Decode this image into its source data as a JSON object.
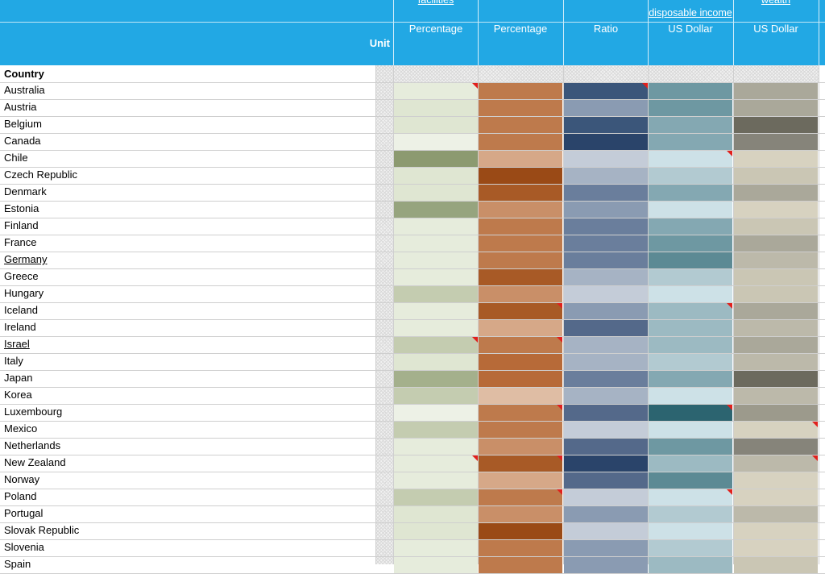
{
  "header": {
    "column_titles": [
      "facilities",
      "",
      "",
      "disposable income",
      "wealth"
    ],
    "unit_label": "Unit",
    "units": [
      "Percentage",
      "Percentage",
      "Ratio",
      "US Dollar",
      "US Dollar"
    ]
  },
  "country_header": "Country",
  "palette": {
    "c1": [
      "#8c9a70",
      "#96a47e",
      "#a4b08c",
      "#b6c0a0",
      "#c4ccb0",
      "#d4dcc4",
      "#dfe6d2",
      "#e6ecdc",
      "#edf1e6"
    ],
    "c2": [
      "#9a4a16",
      "#a85a26",
      "#b76a38",
      "#be7a4c",
      "#c98f68",
      "#d6a888",
      "#dfbda4"
    ],
    "c3": [
      "#2a446a",
      "#3b567a",
      "#54698a",
      "#6a7e9c",
      "#8a9bb2",
      "#a6b3c4",
      "#c4ccd8"
    ],
    "c4": [
      "#2c6470",
      "#5c8a94",
      "#6e98a2",
      "#84a8b2",
      "#9cbac2",
      "#b2cad1",
      "#cde1e7"
    ],
    "c5": [
      "#6c6a5e",
      "#86847a",
      "#9c9a8c",
      "#aaa89a",
      "#bcb9aa",
      "#cac6b4",
      "#d7d2c0"
    ]
  },
  "rows": [
    {
      "name": "Australia",
      "shade": [
        7,
        3,
        1,
        2,
        3
      ],
      "flag": [
        true,
        false,
        true,
        false,
        false
      ]
    },
    {
      "name": "Austria",
      "shade": [
        6,
        3,
        4,
        2,
        3
      ],
      "flag": [
        false,
        false,
        false,
        false,
        false
      ]
    },
    {
      "name": "Belgium",
      "shade": [
        6,
        3,
        1,
        3,
        0
      ],
      "flag": [
        false,
        false,
        false,
        false,
        false
      ]
    },
    {
      "name": "Canada",
      "shade": [
        8,
        3,
        0,
        3,
        1
      ],
      "flag": [
        false,
        false,
        false,
        false,
        false
      ]
    },
    {
      "name": "Chile",
      "shade": [
        0,
        5,
        6,
        6,
        6
      ],
      "flag": [
        false,
        false,
        false,
        true,
        false
      ]
    },
    {
      "name": "Czech Republic",
      "shade": [
        6,
        0,
        5,
        5,
        5
      ],
      "flag": [
        false,
        false,
        false,
        false,
        false
      ]
    },
    {
      "name": "Denmark",
      "shade": [
        6,
        1,
        3,
        3,
        3
      ],
      "flag": [
        false,
        false,
        false,
        false,
        false
      ]
    },
    {
      "name": "Estonia",
      "shade": [
        1,
        4,
        4,
        6,
        6
      ],
      "flag": [
        false,
        false,
        false,
        false,
        false
      ]
    },
    {
      "name": "Finland",
      "shade": [
        7,
        3,
        3,
        3,
        5
      ],
      "flag": [
        false,
        false,
        false,
        false,
        false
      ]
    },
    {
      "name": "France",
      "shade": [
        7,
        3,
        3,
        2,
        3
      ],
      "flag": [
        false,
        false,
        false,
        false,
        false
      ]
    },
    {
      "name": "Germany",
      "shade": [
        7,
        3,
        3,
        1,
        4
      ],
      "flag": [
        false,
        false,
        false,
        false,
        false
      ],
      "link": true
    },
    {
      "name": "Greece",
      "shade": [
        7,
        1,
        5,
        5,
        5
      ],
      "flag": [
        false,
        false,
        false,
        false,
        false
      ]
    },
    {
      "name": "Hungary",
      "shade": [
        4,
        4,
        6,
        6,
        5
      ],
      "flag": [
        false,
        false,
        false,
        false,
        false
      ]
    },
    {
      "name": "Iceland",
      "shade": [
        7,
        1,
        4,
        4,
        3
      ],
      "flag": [
        false,
        true,
        false,
        true,
        false
      ]
    },
    {
      "name": "Ireland",
      "shade": [
        7,
        5,
        2,
        4,
        4
      ],
      "flag": [
        false,
        false,
        false,
        false,
        false
      ]
    },
    {
      "name": "Israel",
      "shade": [
        4,
        3,
        5,
        4,
        3
      ],
      "flag": [
        true,
        true,
        false,
        false,
        false
      ],
      "link": true
    },
    {
      "name": "Italy",
      "shade": [
        6,
        2,
        5,
        5,
        4
      ],
      "flag": [
        false,
        false,
        false,
        false,
        false
      ]
    },
    {
      "name": "Japan",
      "shade": [
        2,
        2,
        3,
        3,
        0
      ],
      "flag": [
        false,
        false,
        false,
        false,
        false
      ]
    },
    {
      "name": "Korea",
      "shade": [
        4,
        6,
        5,
        6,
        4
      ],
      "flag": [
        false,
        false,
        false,
        false,
        false
      ]
    },
    {
      "name": "Luxembourg",
      "shade": [
        8,
        3,
        2,
        0,
        2
      ],
      "flag": [
        false,
        true,
        false,
        true,
        false
      ]
    },
    {
      "name": "Mexico",
      "shade": [
        4,
        3,
        6,
        6,
        6
      ],
      "flag": [
        false,
        false,
        false,
        false,
        true
      ]
    },
    {
      "name": "Netherlands",
      "shade": [
        7,
        4,
        2,
        2,
        1
      ],
      "flag": [
        false,
        false,
        false,
        false,
        false
      ]
    },
    {
      "name": "New Zealand",
      "shade": [
        7,
        1,
        0,
        4,
        4
      ],
      "flag": [
        true,
        true,
        false,
        false,
        true
      ]
    },
    {
      "name": "Norway",
      "shade": [
        7,
        5,
        2,
        1,
        6
      ],
      "flag": [
        false,
        false,
        false,
        false,
        false
      ]
    },
    {
      "name": "Poland",
      "shade": [
        4,
        3,
        6,
        6,
        6
      ],
      "flag": [
        false,
        true,
        false,
        true,
        false
      ]
    },
    {
      "name": "Portugal",
      "shade": [
        6,
        4,
        4,
        5,
        4
      ],
      "flag": [
        false,
        false,
        false,
        false,
        false
      ]
    },
    {
      "name": "Slovak Republic",
      "shade": [
        6,
        0,
        6,
        6,
        6
      ],
      "flag": [
        false,
        false,
        false,
        false,
        false
      ]
    },
    {
      "name": "Slovenia",
      "shade": [
        7,
        3,
        4,
        5,
        6
      ],
      "flag": [
        false,
        false,
        false,
        false,
        false
      ]
    },
    {
      "name": "Spain",
      "shade": [
        7,
        3,
        4,
        4,
        5
      ],
      "flag": [
        false,
        false,
        false,
        false,
        false
      ]
    }
  ]
}
